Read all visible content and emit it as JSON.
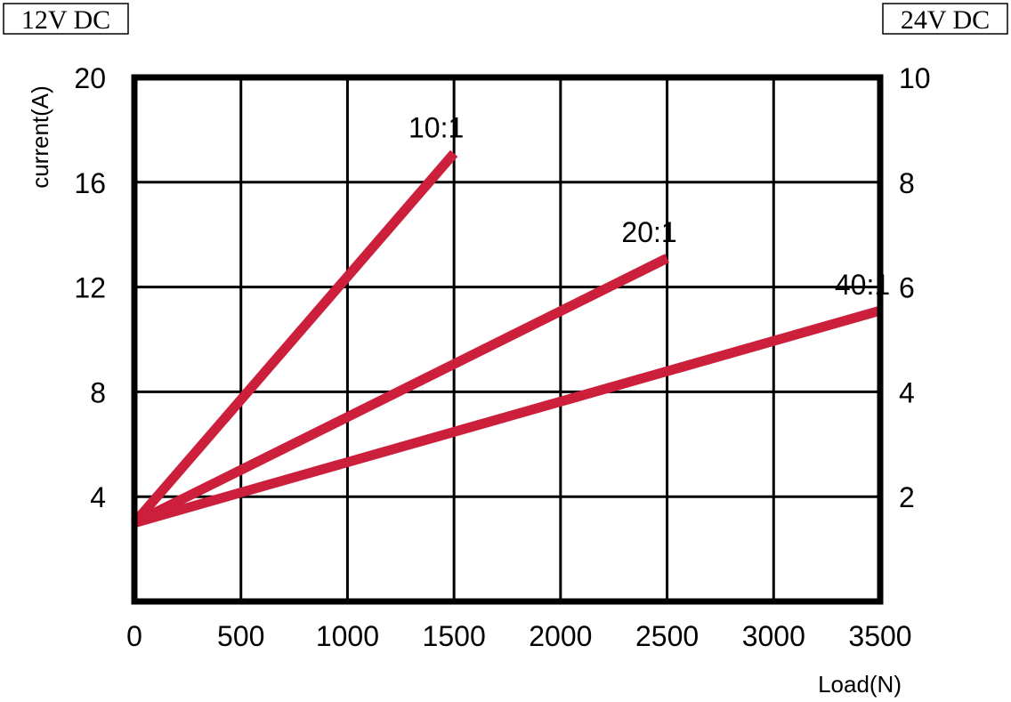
{
  "chart_data": {
    "type": "line",
    "left_box_label": "12V DC",
    "right_box_label": "24V DC",
    "ylabel": "current(A)",
    "xlabel": "Load(N)",
    "xlim": [
      0,
      3500
    ],
    "ylim": [
      0,
      20
    ],
    "y2lim": [
      0,
      10
    ],
    "x_ticks": [
      0,
      500,
      1000,
      1500,
      2000,
      2500,
      3000,
      3500
    ],
    "x_tick_labels": [
      "0",
      "500",
      "1000",
      "1500",
      "2000",
      "2500",
      "3000",
      "3500"
    ],
    "y_ticks": [
      4,
      8,
      12,
      16,
      20
    ],
    "y_tick_labels": [
      "4",
      "8",
      "12",
      "16",
      "20"
    ],
    "y2_ticks": [
      2,
      4,
      6,
      8,
      10
    ],
    "y2_tick_labels": [
      "2",
      "4",
      "6",
      "8",
      "10"
    ],
    "grid": true,
    "legend": "none",
    "series_color": "#cc1f3c",
    "series": [
      {
        "name": "10:1",
        "x": [
          0,
          1500
        ],
        "y": [
          3.0,
          17.1
        ]
      },
      {
        "name": "20:1",
        "x": [
          0,
          2500
        ],
        "y": [
          3.0,
          13.1
        ]
      },
      {
        "name": "40:1",
        "x": [
          0,
          3500
        ],
        "y": [
          3.0,
          11.1
        ]
      }
    ]
  }
}
